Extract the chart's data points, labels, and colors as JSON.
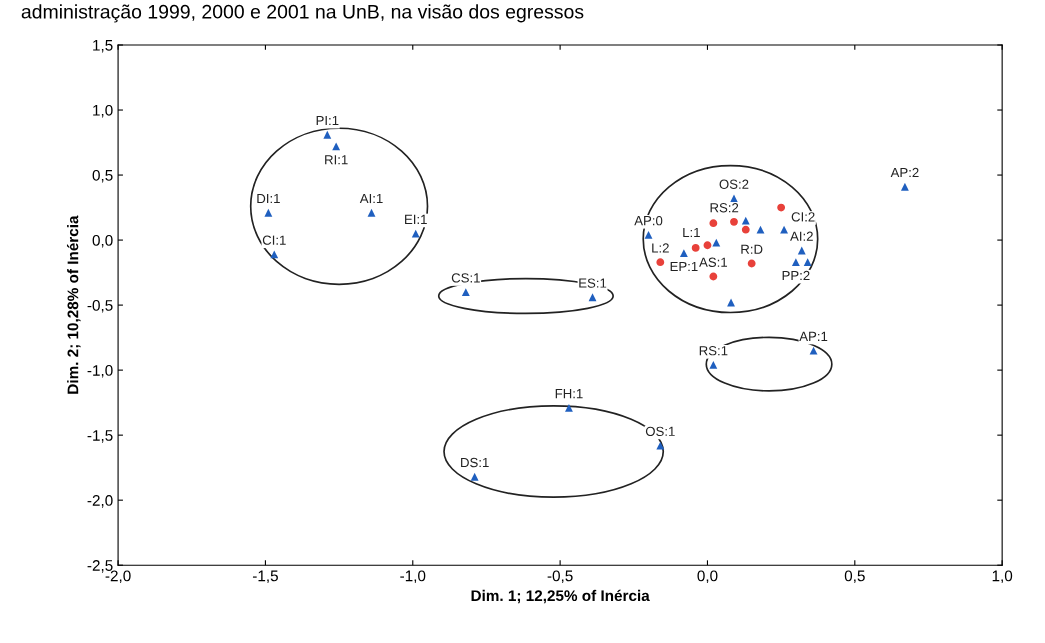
{
  "chart_data": {
    "type": "scatter",
    "title": "administração 1999, 2000 e 2001 na UnB, na visão dos egressos",
    "xlabel": "Dim. 1; 12,25% of Inércia",
    "ylabel": "Dim. 2; 10,28% of Inércia",
    "xlim": [
      -2.0,
      1.0
    ],
    "ylim": [
      -2.5,
      1.5
    ],
    "xticks": [
      {
        "value": -2.0,
        "label": "-2,0"
      },
      {
        "value": -1.5,
        "label": "-1,5"
      },
      {
        "value": -1.0,
        "label": "-1,0"
      },
      {
        "value": -0.5,
        "label": "-0,5"
      },
      {
        "value": 0.0,
        "label": "0,0"
      },
      {
        "value": 0.5,
        "label": "0,5"
      },
      {
        "value": 1.0,
        "label": "1,0"
      }
    ],
    "yticks": [
      {
        "value": 1.5,
        "label": "1,5"
      },
      {
        "value": 1.0,
        "label": "1,0"
      },
      {
        "value": 0.5,
        "label": "0,5"
      },
      {
        "value": 0.0,
        "label": "0,0"
      },
      {
        "value": -0.5,
        "label": "-0,5"
      },
      {
        "value": -1.0,
        "label": "-1,0"
      },
      {
        "value": -1.5,
        "label": "-1,5"
      },
      {
        "value": -2.0,
        "label": "-2,0"
      },
      {
        "value": -2.5,
        "label": "-2,5"
      }
    ],
    "grid": false,
    "legend": false,
    "series": [
      {
        "type": "scatter",
        "marker": "triangle",
        "color": "#1f5fbf",
        "x": [
          -1.29,
          -1.26,
          -1.49,
          -1.47,
          -1.14,
          -0.99,
          -0.82,
          -0.39,
          -0.47,
          -0.16,
          -0.79,
          0.02,
          0.36,
          0.67,
          0.08,
          -0.2,
          -0.08,
          0.03,
          0.18,
          0.26,
          0.32,
          0.3,
          0.34,
          0.09,
          0.13
        ],
        "values": [
          0.81,
          0.72,
          0.21,
          -0.11,
          0.21,
          0.05,
          -0.4,
          -0.44,
          -1.29,
          -1.58,
          -1.82,
          -0.96,
          -0.85,
          0.41,
          -0.48,
          0.04,
          -0.1,
          -0.02,
          0.08,
          0.08,
          -0.08,
          -0.17,
          -0.17,
          0.32,
          0.15
        ]
      },
      {
        "type": "scatter",
        "marker": "circle",
        "color": "#e8413a",
        "x": [
          -0.16,
          -0.04,
          0.0,
          0.02,
          0.09,
          0.13,
          0.15,
          0.02,
          0.25
        ],
        "values": [
          -0.17,
          -0.06,
          -0.04,
          0.13,
          0.14,
          0.08,
          -0.18,
          -0.28,
          0.25
        ]
      }
    ],
    "annotations": [
      {
        "text": "PI:1",
        "x": -1.29,
        "y": 0.81
      },
      {
        "text": "RI:1",
        "x": -1.26,
        "y": 0.72
      },
      {
        "text": "DI:1",
        "x": -1.49,
        "y": 0.21
      },
      {
        "text": "CI:1",
        "x": -1.47,
        "y": -0.11
      },
      {
        "text": "AI:1",
        "x": -1.14,
        "y": 0.21
      },
      {
        "text": "EI:1",
        "x": -0.99,
        "y": 0.05
      },
      {
        "text": "CS:1",
        "x": -0.82,
        "y": -0.4
      },
      {
        "text": "ES:1",
        "x": -0.39,
        "y": -0.44
      },
      {
        "text": "FH:1",
        "x": -0.47,
        "y": -1.29
      },
      {
        "text": "OS:1",
        "x": -0.16,
        "y": -1.58
      },
      {
        "text": "DS:1",
        "x": -0.79,
        "y": -1.82
      },
      {
        "text": "RS:1",
        "x": 0.02,
        "y": -0.96
      },
      {
        "text": "AP:1",
        "x": 0.36,
        "y": -0.85
      },
      {
        "text": "AP:2",
        "x": 0.67,
        "y": 0.41
      },
      {
        "text": "AS:1",
        "x": 0.02,
        "y": -0.28
      },
      {
        "text": "AP:0",
        "x": -0.2,
        "y": 0.04
      },
      {
        "text": "L:2",
        "x": -0.16,
        "y": -0.17
      },
      {
        "text": "EP:1",
        "x": -0.08,
        "y": -0.1
      },
      {
        "text": "L:1",
        "x": 0.0,
        "y": -0.04
      },
      {
        "text": "R:D",
        "x": 0.15,
        "y": -0.18
      },
      {
        "text": "PP:2",
        "x": 0.3,
        "y": -0.17
      },
      {
        "text": "AI:2",
        "x": 0.32,
        "y": -0.08
      },
      {
        "text": "CI:2",
        "x": 0.26,
        "y": 0.08
      },
      {
        "text": "OS:2",
        "x": 0.09,
        "y": 0.32
      },
      {
        "text": "RS:2",
        "x": 0.13,
        "y": 0.15
      }
    ]
  }
}
